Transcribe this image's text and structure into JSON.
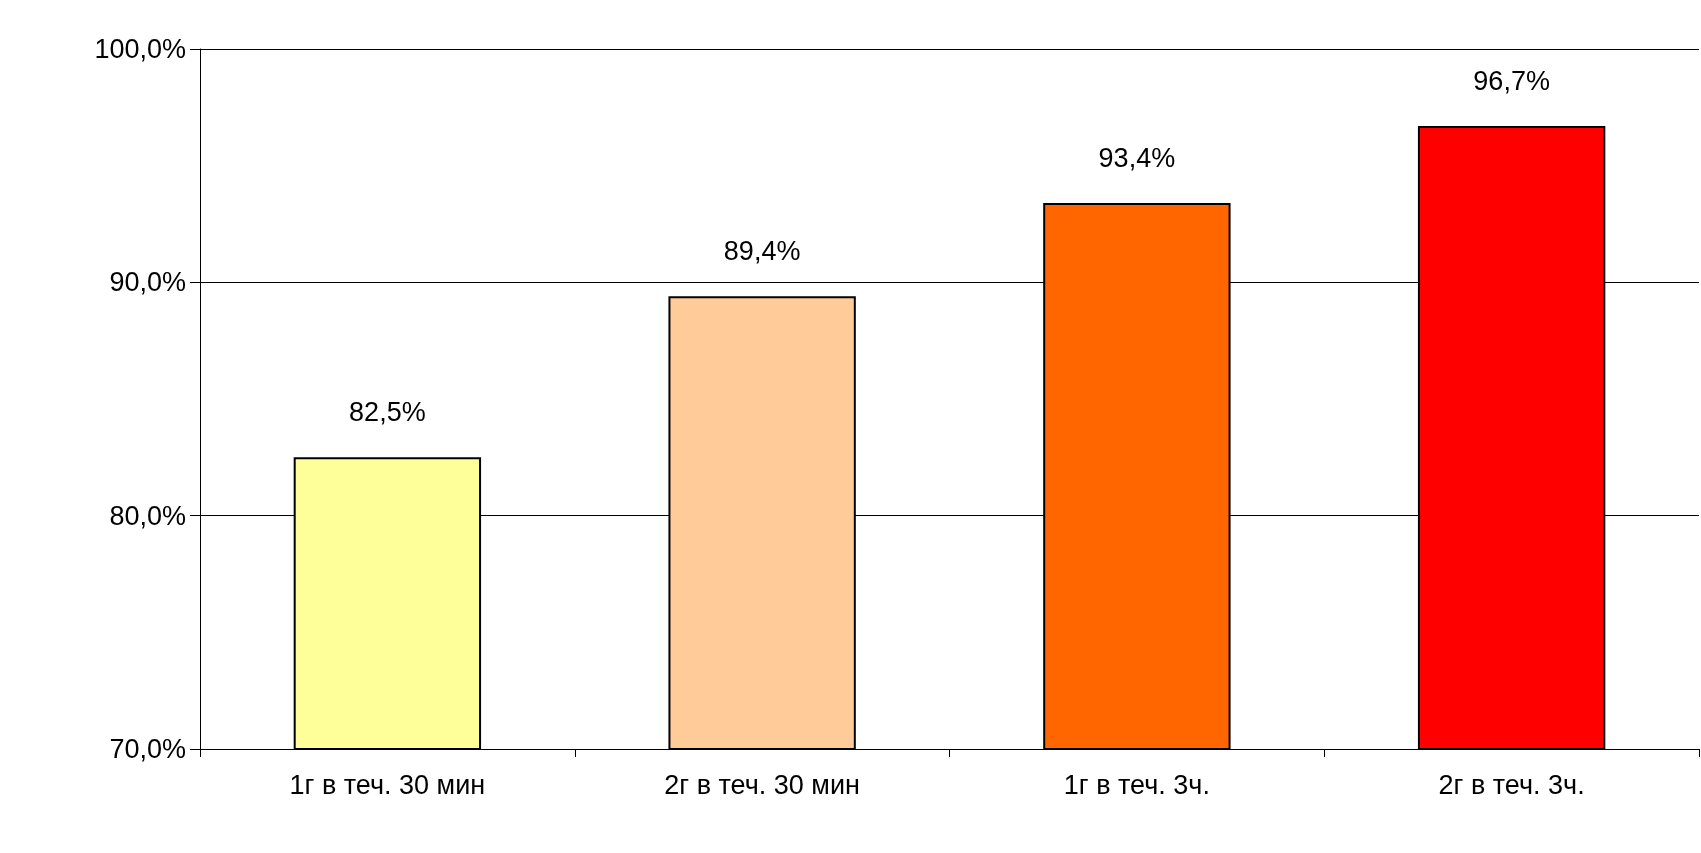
{
  "chart_data": {
    "type": "bar",
    "categories": [
      "1г в теч. 30 мин",
      "2г в теч. 30 мин",
      "1г в теч. 3ч.",
      "2г в теч. 3ч."
    ],
    "values": [
      82.5,
      89.4,
      93.4,
      96.7
    ],
    "colors": [
      "#ffff99",
      "#ffcc99",
      "#ff6600",
      "#ff0000"
    ],
    "value_labels": [
      "82,5%",
      "89,4%",
      "93,4%",
      "96,7%"
    ],
    "ylim": [
      70,
      100
    ],
    "yticks": [
      {
        "value": 70,
        "label": "70,0%"
      },
      {
        "value": 80,
        "label": "80,0%"
      },
      {
        "value": 90,
        "label": "90,0%"
      },
      {
        "value": 100,
        "label": "100,0%"
      }
    ],
    "grid": "y"
  }
}
